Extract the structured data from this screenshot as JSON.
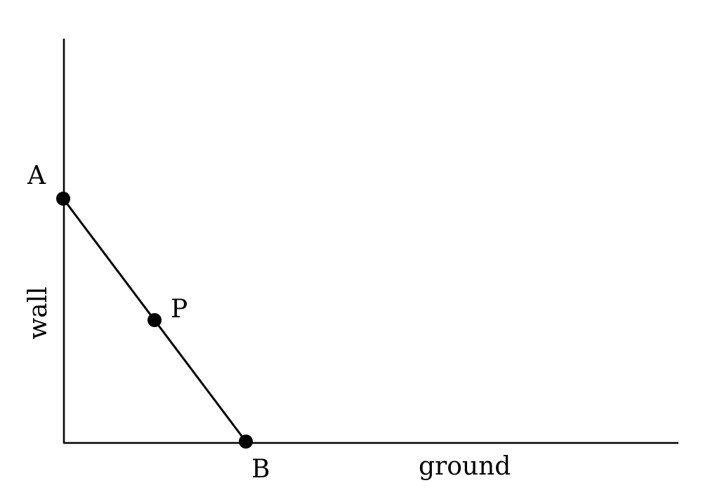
{
  "labels": {
    "top_point": "A",
    "middle_point": "P",
    "bottom_point": "B",
    "vertical_axis": "wall",
    "horizontal_axis": "ground"
  },
  "colors": {
    "ink": "#000000",
    "background": "#ffffff"
  }
}
